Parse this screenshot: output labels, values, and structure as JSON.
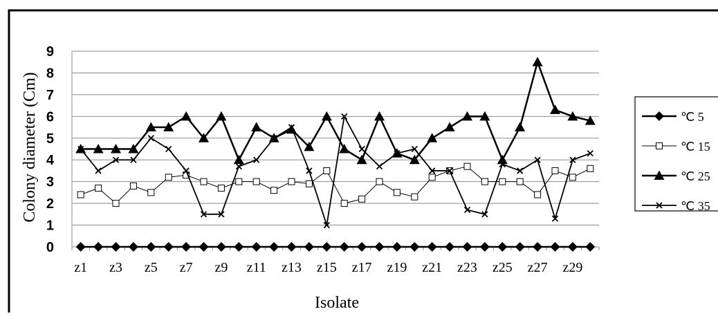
{
  "chart_data": {
    "type": "line",
    "title": "",
    "xlabel": "Isolate",
    "ylabel": "Colony diameter  (Cm)",
    "ylim": [
      0,
      9
    ],
    "yticks": [
      0,
      1,
      2,
      3,
      4,
      5,
      6,
      7,
      8,
      9
    ],
    "categories": [
      "z1",
      "z2",
      "z3",
      "z4",
      "z5",
      "z6",
      "z7",
      "z8",
      "z9",
      "z10",
      "z11",
      "z12",
      "z13",
      "z14",
      "z15",
      "z16",
      "z17",
      "z18",
      "z19",
      "z20",
      "z21",
      "z22",
      "z23",
      "z24",
      "z25",
      "z26",
      "z27",
      "z28",
      "z29",
      "z30"
    ],
    "xtick_labels": [
      "z1",
      "z3",
      "z5",
      "z7",
      "z9",
      "z11",
      "z13",
      "z15",
      "z17",
      "z19",
      "z21",
      "z23",
      "z25",
      "z27",
      "z29"
    ],
    "grid": "horizontal",
    "legend_position": "right",
    "series": [
      {
        "name": "℃ 5",
        "marker": "diamond",
        "color": "#000000",
        "values": [
          0,
          0,
          0,
          0,
          0,
          0,
          0,
          0,
          0,
          0,
          0,
          0,
          0,
          0,
          0,
          0,
          0,
          0,
          0,
          0,
          0,
          0,
          0,
          0,
          0,
          0,
          0,
          0,
          0,
          0
        ]
      },
      {
        "name": "℃ 15",
        "marker": "square-open",
        "color": "#000000",
        "values": [
          2.4,
          2.7,
          2.0,
          2.8,
          2.5,
          3.2,
          3.3,
          3.0,
          2.7,
          3.0,
          3.0,
          2.6,
          3.0,
          2.9,
          3.5,
          2.0,
          2.2,
          3.0,
          2.5,
          2.3,
          3.2,
          3.5,
          3.7,
          3.0,
          3.0,
          3.0,
          2.4,
          3.5,
          3.2,
          3.6
        ]
      },
      {
        "name": "℃ 25",
        "marker": "triangle",
        "color": "#000000",
        "values": [
          4.5,
          4.5,
          4.5,
          4.5,
          5.5,
          5.5,
          6.0,
          5.0,
          6.0,
          4.0,
          5.5,
          5.0,
          5.4,
          4.6,
          6.0,
          4.5,
          4.0,
          6.0,
          4.3,
          4.0,
          5.0,
          5.5,
          6.0,
          6.0,
          4.0,
          5.5,
          8.5,
          6.3,
          6.0,
          5.8
        ]
      },
      {
        "name": "℃ 35",
        "marker": "x",
        "color": "#000000",
        "values": [
          4.5,
          3.5,
          4.0,
          4.0,
          5.0,
          4.5,
          3.5,
          1.5,
          1.5,
          3.7,
          4.0,
          5.0,
          5.5,
          3.5,
          1.0,
          6.0,
          4.5,
          3.7,
          4.3,
          4.5,
          3.5,
          3.5,
          1.7,
          1.5,
          3.8,
          3.5,
          4.0,
          1.3,
          4.0,
          4.3
        ]
      }
    ]
  }
}
